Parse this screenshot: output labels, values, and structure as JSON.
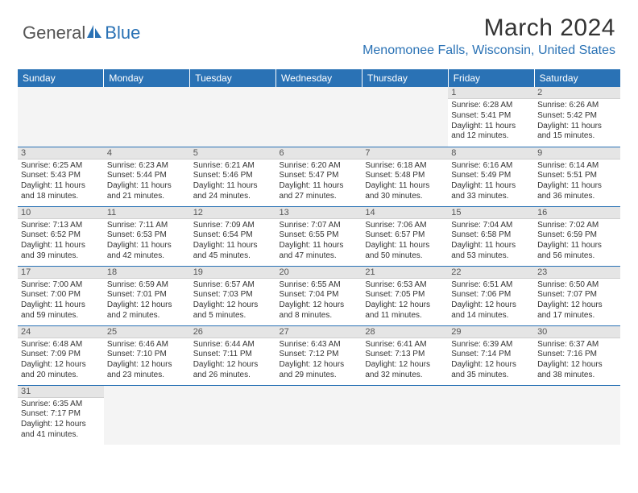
{
  "logo": {
    "part1": "General",
    "part2": "Blue"
  },
  "title": "March 2024",
  "location": "Menomonee Falls, Wisconsin, United States",
  "weekdays": [
    "Sunday",
    "Monday",
    "Tuesday",
    "Wednesday",
    "Thursday",
    "Friday",
    "Saturday"
  ],
  "colors": {
    "accent": "#2a72b5",
    "header_bg": "#2a72b5",
    "daynum_bg": "#e5e5e5"
  },
  "weeks": [
    [
      null,
      null,
      null,
      null,
      null,
      {
        "n": "1",
        "sr": "6:28 AM",
        "ss": "5:41 PM",
        "dl": "11 hours and 12 minutes."
      },
      {
        "n": "2",
        "sr": "6:26 AM",
        "ss": "5:42 PM",
        "dl": "11 hours and 15 minutes."
      }
    ],
    [
      {
        "n": "3",
        "sr": "6:25 AM",
        "ss": "5:43 PM",
        "dl": "11 hours and 18 minutes."
      },
      {
        "n": "4",
        "sr": "6:23 AM",
        "ss": "5:44 PM",
        "dl": "11 hours and 21 minutes."
      },
      {
        "n": "5",
        "sr": "6:21 AM",
        "ss": "5:46 PM",
        "dl": "11 hours and 24 minutes."
      },
      {
        "n": "6",
        "sr": "6:20 AM",
        "ss": "5:47 PM",
        "dl": "11 hours and 27 minutes."
      },
      {
        "n": "7",
        "sr": "6:18 AM",
        "ss": "5:48 PM",
        "dl": "11 hours and 30 minutes."
      },
      {
        "n": "8",
        "sr": "6:16 AM",
        "ss": "5:49 PM",
        "dl": "11 hours and 33 minutes."
      },
      {
        "n": "9",
        "sr": "6:14 AM",
        "ss": "5:51 PM",
        "dl": "11 hours and 36 minutes."
      }
    ],
    [
      {
        "n": "10",
        "sr": "7:13 AM",
        "ss": "6:52 PM",
        "dl": "11 hours and 39 minutes."
      },
      {
        "n": "11",
        "sr": "7:11 AM",
        "ss": "6:53 PM",
        "dl": "11 hours and 42 minutes."
      },
      {
        "n": "12",
        "sr": "7:09 AM",
        "ss": "6:54 PM",
        "dl": "11 hours and 45 minutes."
      },
      {
        "n": "13",
        "sr": "7:07 AM",
        "ss": "6:55 PM",
        "dl": "11 hours and 47 minutes."
      },
      {
        "n": "14",
        "sr": "7:06 AM",
        "ss": "6:57 PM",
        "dl": "11 hours and 50 minutes."
      },
      {
        "n": "15",
        "sr": "7:04 AM",
        "ss": "6:58 PM",
        "dl": "11 hours and 53 minutes."
      },
      {
        "n": "16",
        "sr": "7:02 AM",
        "ss": "6:59 PM",
        "dl": "11 hours and 56 minutes."
      }
    ],
    [
      {
        "n": "17",
        "sr": "7:00 AM",
        "ss": "7:00 PM",
        "dl": "11 hours and 59 minutes."
      },
      {
        "n": "18",
        "sr": "6:59 AM",
        "ss": "7:01 PM",
        "dl": "12 hours and 2 minutes."
      },
      {
        "n": "19",
        "sr": "6:57 AM",
        "ss": "7:03 PM",
        "dl": "12 hours and 5 minutes."
      },
      {
        "n": "20",
        "sr": "6:55 AM",
        "ss": "7:04 PM",
        "dl": "12 hours and 8 minutes."
      },
      {
        "n": "21",
        "sr": "6:53 AM",
        "ss": "7:05 PM",
        "dl": "12 hours and 11 minutes."
      },
      {
        "n": "22",
        "sr": "6:51 AM",
        "ss": "7:06 PM",
        "dl": "12 hours and 14 minutes."
      },
      {
        "n": "23",
        "sr": "6:50 AM",
        "ss": "7:07 PM",
        "dl": "12 hours and 17 minutes."
      }
    ],
    [
      {
        "n": "24",
        "sr": "6:48 AM",
        "ss": "7:09 PM",
        "dl": "12 hours and 20 minutes."
      },
      {
        "n": "25",
        "sr": "6:46 AM",
        "ss": "7:10 PM",
        "dl": "12 hours and 23 minutes."
      },
      {
        "n": "26",
        "sr": "6:44 AM",
        "ss": "7:11 PM",
        "dl": "12 hours and 26 minutes."
      },
      {
        "n": "27",
        "sr": "6:43 AM",
        "ss": "7:12 PM",
        "dl": "12 hours and 29 minutes."
      },
      {
        "n": "28",
        "sr": "6:41 AM",
        "ss": "7:13 PM",
        "dl": "12 hours and 32 minutes."
      },
      {
        "n": "29",
        "sr": "6:39 AM",
        "ss": "7:14 PM",
        "dl": "12 hours and 35 minutes."
      },
      {
        "n": "30",
        "sr": "6:37 AM",
        "ss": "7:16 PM",
        "dl": "12 hours and 38 minutes."
      }
    ],
    [
      {
        "n": "31",
        "sr": "6:35 AM",
        "ss": "7:17 PM",
        "dl": "12 hours and 41 minutes."
      },
      null,
      null,
      null,
      null,
      null,
      null
    ]
  ],
  "labels": {
    "sunrise": "Sunrise:",
    "sunset": "Sunset:",
    "daylight": "Daylight:"
  }
}
